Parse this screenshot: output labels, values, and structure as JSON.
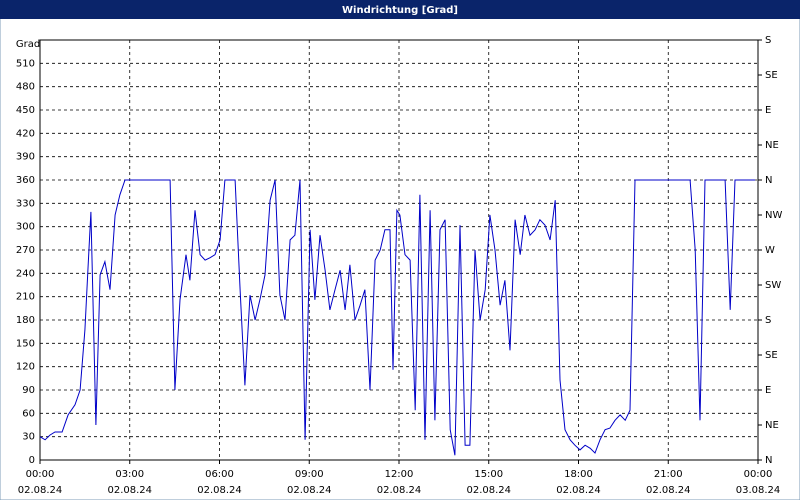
{
  "chart_data": {
    "type": "line",
    "title": "Windrichtung [Grad]",
    "y_label": "Grad",
    "xlim": [
      0,
      24
    ],
    "ylim": [
      0,
      540
    ],
    "y2lim": [
      0,
      540
    ],
    "grid": true,
    "xticks": [
      {
        "value": 0,
        "label": "00:00"
      },
      {
        "value": 3,
        "label": "03:00"
      },
      {
        "value": 6,
        "label": "06:00"
      },
      {
        "value": 9,
        "label": "09:00"
      },
      {
        "value": 12,
        "label": "12:00"
      },
      {
        "value": 15,
        "label": "15:00"
      },
      {
        "value": 18,
        "label": "18:00"
      },
      {
        "value": 21,
        "label": "21:00"
      },
      {
        "value": 24,
        "label": "00:00"
      }
    ],
    "xtick_dates": [
      "02.08.24",
      "02.08.24",
      "02.08.24",
      "02.08.24",
      "02.08.24",
      "02.08.24",
      "02.08.24",
      "02.08.24",
      "03.08.24"
    ],
    "yticks": [
      0,
      30,
      60,
      90,
      120,
      150,
      180,
      210,
      240,
      270,
      300,
      330,
      360,
      390,
      420,
      450,
      480,
      510
    ],
    "y2ticks": [
      {
        "value": 0,
        "label": "N"
      },
      {
        "value": 45,
        "label": "NE"
      },
      {
        "value": 90,
        "label": "E"
      },
      {
        "value": 135,
        "label": "SE"
      },
      {
        "value": 180,
        "label": "S"
      },
      {
        "value": 225,
        "label": "SW"
      },
      {
        "value": 270,
        "label": "W"
      },
      {
        "value": 315,
        "label": "NW"
      },
      {
        "value": 360,
        "label": "N"
      },
      {
        "value": 405,
        "label": "NE"
      },
      {
        "value": 450,
        "label": "E"
      },
      {
        "value": 495,
        "label": "SE"
      },
      {
        "value": 540,
        "label": "S"
      }
    ],
    "series": [
      {
        "color": "#0000c8",
        "x": [
          0,
          0.17,
          0.33,
          0.5,
          0.74,
          0.94,
          1.17,
          1.34,
          1.5,
          1.6,
          1.7,
          1.87,
          2.01,
          2.17,
          2.34,
          2.51,
          2.67,
          2.84,
          4.35,
          4.51,
          4.68,
          4.88,
          5.01,
          5.18,
          5.35,
          5.52,
          5.68,
          5.85,
          6.02,
          6.18,
          6.52,
          6.69,
          6.85,
          7.02,
          7.19,
          7.35,
          7.52,
          7.69,
          7.86,
          8.02,
          8.19,
          8.36,
          8.52,
          8.69,
          8.86,
          9.03,
          9.19,
          9.36,
          9.53,
          9.69,
          9.86,
          10.03,
          10.2,
          10.36,
          10.53,
          10.7,
          10.86,
          11.03,
          11.2,
          11.37,
          11.53,
          11.7,
          11.8,
          11.93,
          12.03,
          12.2,
          12.37,
          12.54,
          12.7,
          12.87,
          13.04,
          13.2,
          13.37,
          13.54,
          13.71,
          13.87,
          14.04,
          14.21,
          14.37,
          14.54,
          14.71,
          14.88,
          15.04,
          15.21,
          15.38,
          15.54,
          15.71,
          15.88,
          16.05,
          16.21,
          16.38,
          16.55,
          16.71,
          16.88,
          17.05,
          17.22,
          17.38,
          17.55,
          17.72,
          17.88,
          18.05,
          18.22,
          18.39,
          18.55,
          18.72,
          18.89,
          19.05,
          19.22,
          19.39,
          19.56,
          19.72,
          19.89,
          21.73,
          21.9,
          22.06,
          22.23,
          22.9,
          23.07,
          23.23,
          23.9
        ],
        "values": [
          30,
          26,
          32,
          36,
          36,
          58,
          71,
          90,
          167,
          244,
          319,
          45,
          238,
          255,
          219,
          315,
          341,
          360,
          360,
          90,
          206,
          264,
          231,
          321,
          264,
          257,
          260,
          264,
          283,
          360,
          360,
          219,
          96,
          212,
          180,
          206,
          238,
          334,
          360,
          212,
          180,
          283,
          289,
          360,
          26,
          296,
          206,
          289,
          244,
          193,
          219,
          244,
          193,
          251,
          180,
          199,
          219,
          90,
          257,
          270,
          296,
          296,
          116,
          321,
          315,
          264,
          257,
          64,
          341,
          26,
          321,
          51,
          296,
          309,
          39,
          6,
          302,
          19,
          19,
          270,
          180,
          219,
          315,
          270,
          199,
          231,
          141,
          309,
          264,
          315,
          289,
          296,
          309,
          302,
          283,
          334,
          103,
          39,
          26,
          19,
          13,
          19,
          15,
          9,
          26,
          39,
          41,
          51,
          58,
          51,
          64,
          360,
          360,
          270,
          51,
          360,
          360,
          193,
          360,
          360
        ]
      }
    ]
  }
}
